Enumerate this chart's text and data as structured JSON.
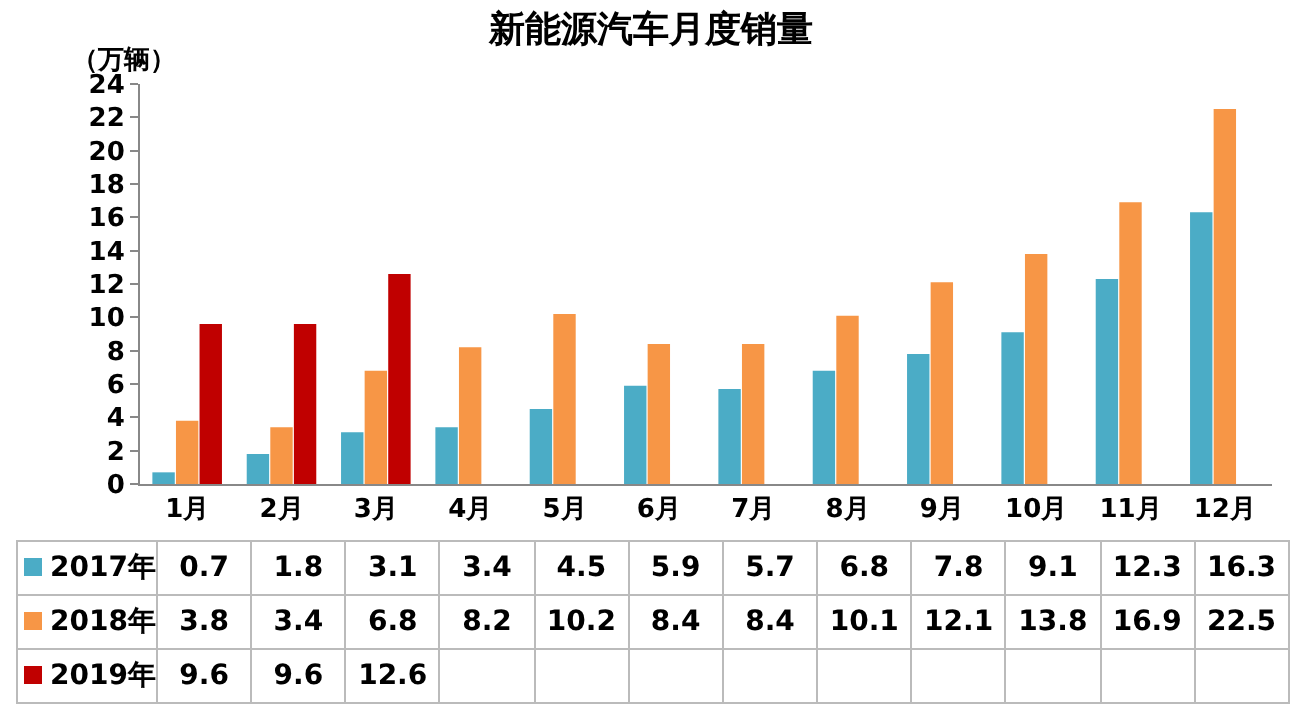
{
  "chart_data": {
    "type": "bar",
    "title": "新能源汽车月度销量",
    "ylabel": "（万辆）",
    "categories": [
      "1月",
      "2月",
      "3月",
      "4月",
      "5月",
      "6月",
      "7月",
      "8月",
      "9月",
      "10月",
      "11月",
      "12月"
    ],
    "series": [
      {
        "name": "2017年",
        "color": "#4bacc6",
        "values": [
          0.7,
          1.8,
          3.1,
          3.4,
          4.5,
          5.9,
          5.7,
          6.8,
          7.8,
          9.1,
          12.3,
          16.3
        ]
      },
      {
        "name": "2018年",
        "color": "#f79646",
        "values": [
          3.8,
          3.4,
          6.8,
          8.2,
          10.2,
          8.4,
          8.4,
          10.1,
          12.1,
          13.8,
          16.9,
          22.5
        ]
      },
      {
        "name": "2019年",
        "color": "#c00000",
        "values": [
          9.6,
          9.6,
          12.6,
          null,
          null,
          null,
          null,
          null,
          null,
          null,
          null,
          null
        ]
      }
    ],
    "ylim": [
      0,
      24
    ],
    "yticks": [
      0,
      2,
      4,
      6,
      8,
      10,
      12,
      14,
      16,
      18,
      20,
      22,
      24
    ],
    "grid": false,
    "data_labels": true,
    "legend": "bottom left"
  }
}
